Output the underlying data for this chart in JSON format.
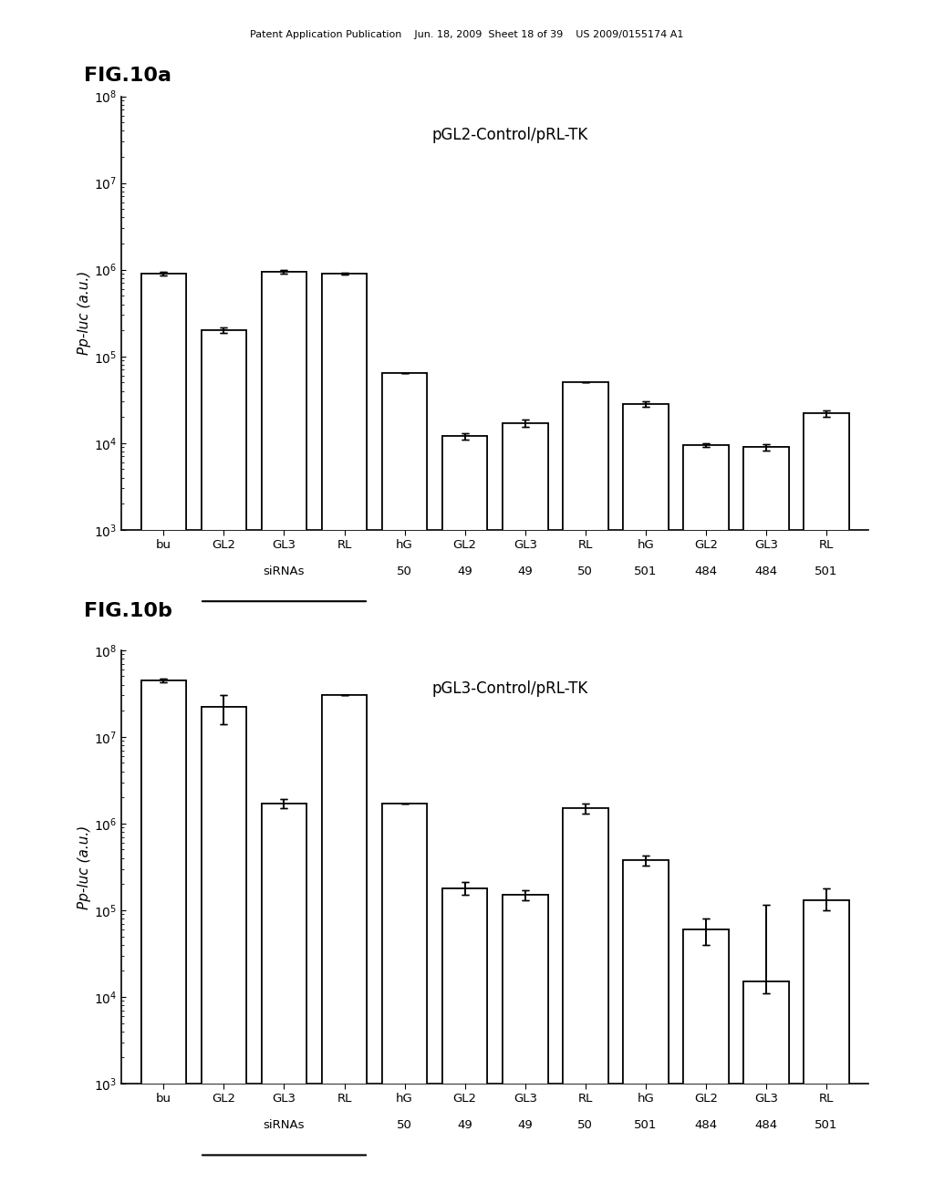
{
  "fig_title_a": "FIG.10a",
  "fig_title_b": "FIG.10b",
  "plot_title_a": "pGL2-Control/pRL-TK",
  "plot_title_b": "pGL3-Control/pRL-TK",
  "ylabel": "Pp-luc (a.u.)",
  "header": "Patent Application Publication    Jun. 18, 2009  Sheet 18 of 39    US 2009/0155174 A1",
  "groups_a": [
    "bu",
    "GL2",
    "GL3",
    "RL",
    "hG",
    "GL2",
    "GL3",
    "RL",
    "hG",
    "GL2",
    "GL3",
    "RL"
  ],
  "values_a": [
    900000,
    200000,
    950000,
    900000,
    65000,
    12000,
    17000,
    50000,
    28000,
    9500,
    9000,
    22000
  ],
  "errors_a_low": [
    50000,
    15000,
    40000,
    30000,
    0,
    1000,
    1500,
    0,
    2000,
    500,
    800,
    2000
  ],
  "errors_a_high": [
    50000,
    15000,
    40000,
    30000,
    0,
    1000,
    1500,
    0,
    2000,
    500,
    800,
    2000
  ],
  "groups_b": [
    "bu",
    "GL2",
    "GL3",
    "RL",
    "hG",
    "GL2",
    "GL3",
    "RL",
    "hG",
    "GL2",
    "GL3",
    "RL"
  ],
  "values_b": [
    45000000,
    22000000,
    1700000,
    30000000,
    1700000,
    180000,
    150000,
    1500000,
    380000,
    60000,
    15000,
    130000
  ],
  "errors_b_low": [
    2000000,
    8000000,
    200000,
    0,
    0,
    30000,
    20000,
    200000,
    50000,
    20000,
    4000,
    30000
  ],
  "errors_b_high": [
    2000000,
    8000000,
    200000,
    0,
    0,
    30000,
    20000,
    200000,
    50000,
    20000,
    100000,
    50000
  ],
  "xlabels_row1": [
    "bu",
    "GL2",
    "GL3",
    "RL",
    "hG",
    "GL2",
    "GL3",
    "RL",
    "hG",
    "GL2",
    "GL3",
    "RL"
  ],
  "xlabels_row2_a": [
    "",
    "",
    "siRNAs",
    "",
    "50",
    "49",
    "49",
    "50",
    "501",
    "484",
    "484",
    "501"
  ],
  "xlabels_row2_b": [
    "",
    "",
    "siRNAs",
    "",
    "50",
    "49",
    "49",
    "50",
    "501",
    "484",
    "484",
    "501"
  ],
  "group_separators": [
    3.5,
    7.5
  ],
  "underline_groups": [
    [
      1,
      3
    ]
  ],
  "bar_color": "#ffffff",
  "bar_edgecolor": "#000000",
  "background_color": "#ffffff"
}
